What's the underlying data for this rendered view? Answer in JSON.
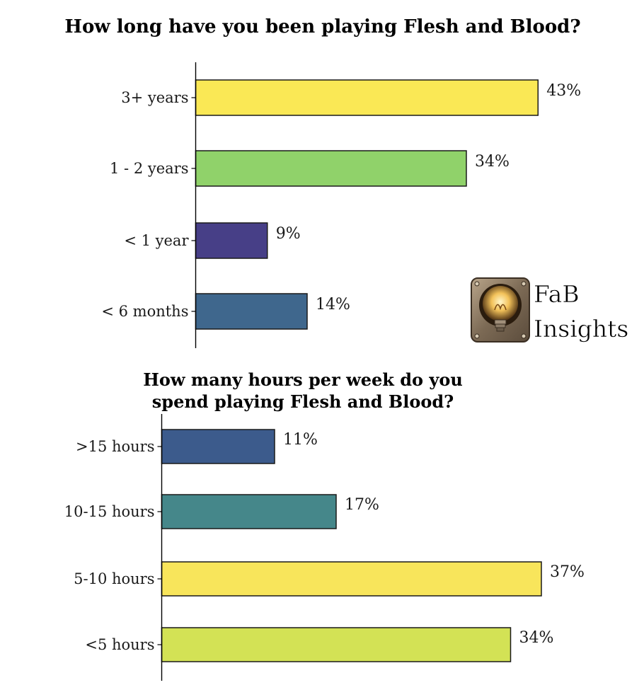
{
  "chart_data": [
    {
      "type": "bar",
      "orientation": "horizontal",
      "title": "How long have you been playing Flesh and Blood?",
      "categories": [
        "3+ years",
        "1 - 2 years",
        "< 1 year",
        "< 6 months"
      ],
      "values": [
        43,
        34,
        9,
        14
      ],
      "value_labels": [
        "43%",
        "34%",
        "9%",
        "14%"
      ],
      "colors": [
        "#fae855",
        "#90d26a",
        "#473f87",
        "#3f678d"
      ],
      "xlim": [
        0,
        48
      ],
      "grid": false
    },
    {
      "type": "bar",
      "orientation": "horizontal",
      "title": [
        "How many hours per week do you",
        "spend playing Flesh and Blood?"
      ],
      "categories": [
        ">15 hours",
        "10-15 hours",
        "5-10 hours",
        "<5 hours"
      ],
      "values": [
        11,
        17,
        37,
        34
      ],
      "value_labels": [
        "11%",
        "17%",
        "37%",
        "34%"
      ],
      "colors": [
        "#3c5b8c",
        "#45878a",
        "#f8e55b",
        "#d3e255"
      ],
      "xlim": [
        0,
        40
      ],
      "grid": false
    }
  ],
  "logo": {
    "text_line1": "FaB",
    "text_line2": "Insights",
    "icon": "lightbulb-icon"
  }
}
